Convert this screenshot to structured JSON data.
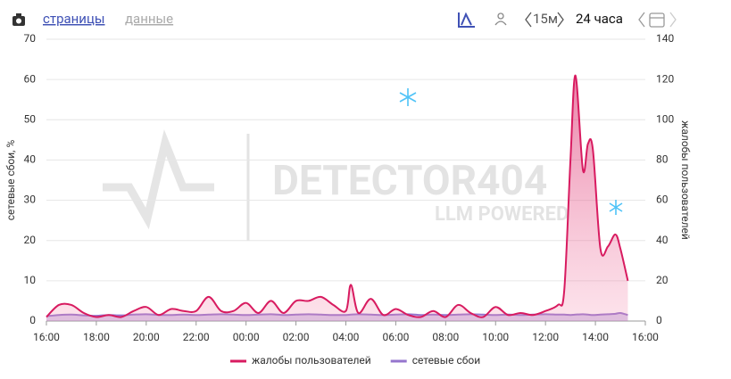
{
  "toolbar": {
    "tabs": [
      "страницы",
      "данные"
    ],
    "interval": "15м",
    "range": "24 часа"
  },
  "chart_data": {
    "type": "line",
    "watermark": {
      "title": "DETECTOR404",
      "subtitle": "LLM POWERED"
    },
    "ylabel": "сетевые сбои, %",
    "y2label": "жалобы пользователей",
    "x": [
      0,
      0.5,
      1,
      1.5,
      2,
      2.5,
      3,
      3.5,
      4,
      4.5,
      5,
      5.5,
      6,
      6.5,
      7,
      7.5,
      8,
      8.5,
      9,
      9.5,
      10,
      10.5,
      11,
      11.5,
      12,
      12.2,
      12.5,
      13,
      13.5,
      14,
      14.5,
      15,
      15.5,
      16,
      16.5,
      17,
      17.5,
      18,
      18.5,
      19,
      19.5,
      20,
      20.5,
      20.75,
      21,
      21.2,
      21.5,
      21.7,
      21.9,
      22.2,
      22.5,
      22.8,
      23,
      23.3
    ],
    "xlim": [
      0,
      24
    ],
    "xticks": [
      {
        "value": 0,
        "label": "16:00"
      },
      {
        "value": 2,
        "label": "18:00"
      },
      {
        "value": 4,
        "label": "20:00"
      },
      {
        "value": 6,
        "label": "22:00"
      },
      {
        "value": 8,
        "label": "00:00"
      },
      {
        "value": 10,
        "label": "02:00"
      },
      {
        "value": 12,
        "label": "04:00"
      },
      {
        "value": 14,
        "label": "06:00"
      },
      {
        "value": 16,
        "label": "08:00"
      },
      {
        "value": 18,
        "label": "10:00"
      },
      {
        "value": 20,
        "label": "12:00"
      },
      {
        "value": 22,
        "label": "14:00"
      },
      {
        "value": 24,
        "label": "16:00"
      }
    ],
    "ylim": [
      0,
      70
    ],
    "yticks": [
      0,
      10,
      20,
      30,
      40,
      50,
      60,
      70
    ],
    "y2lim": [
      0,
      140
    ],
    "y2ticks": [
      0,
      20,
      40,
      60,
      80,
      100,
      120,
      140
    ],
    "grid": true,
    "series": [
      {
        "name": "жалобы пользователей",
        "color": "#d81b60",
        "axis": "y2",
        "values": [
          2,
          8,
          8,
          4,
          2,
          3,
          2,
          5,
          7,
          3,
          6,
          5,
          5,
          12,
          5,
          5,
          9,
          4,
          10,
          4,
          10,
          10,
          12,
          8,
          5,
          18,
          4,
          11,
          3,
          6,
          3,
          2,
          5,
          2,
          8,
          4,
          2,
          7,
          3,
          4,
          3,
          5,
          8,
          15,
          80,
          122,
          75,
          88,
          85,
          36,
          37,
          43,
          36,
          20
        ]
      },
      {
        "name": "сетевые сбои",
        "color": "#9575cd",
        "values": [
          1.2,
          1.5,
          1.6,
          1.4,
          1.3,
          1.5,
          1.4,
          1.6,
          1.7,
          1.5,
          1.5,
          1.6,
          1.5,
          1.6,
          1.7,
          1.6,
          1.5,
          1.6,
          1.7,
          1.5,
          1.6,
          1.7,
          1.6,
          1.5,
          1.5,
          1.6,
          1.7,
          1.6,
          1.5,
          1.6,
          1.7,
          1.5,
          1.6,
          1.5,
          1.6,
          1.7,
          1.6,
          1.5,
          1.6,
          1.5,
          1.6,
          1.7,
          1.6,
          1.6,
          1.5,
          1.6,
          1.7,
          1.6,
          1.5,
          1.6,
          1.7,
          1.8,
          2,
          1.5
        ]
      }
    ]
  }
}
